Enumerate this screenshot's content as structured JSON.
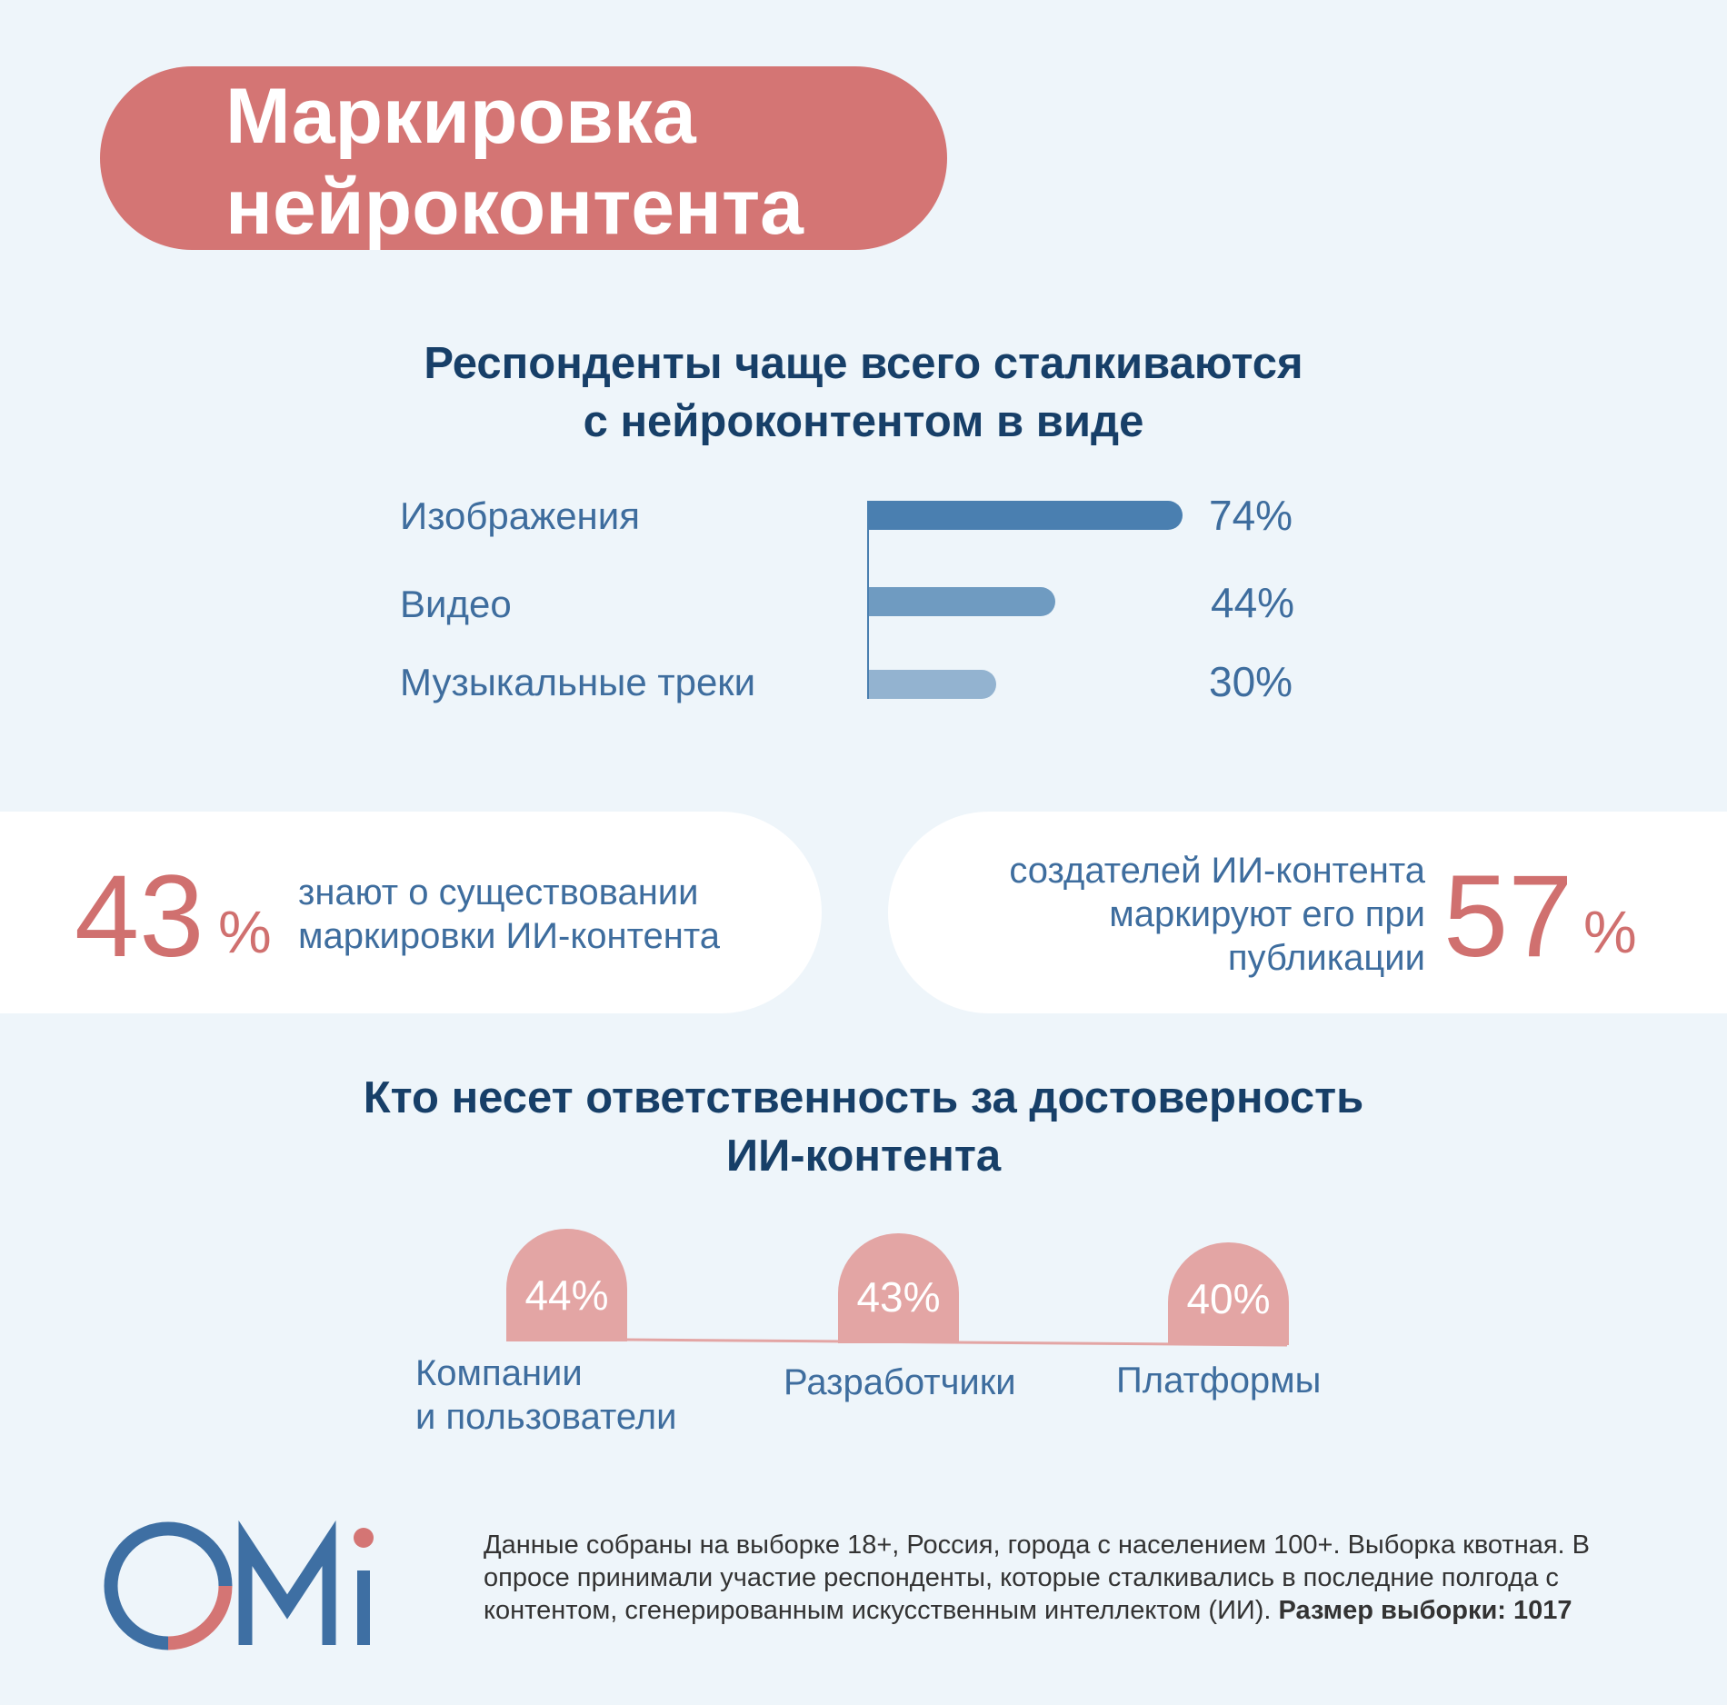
{
  "header": {
    "title": "Маркировка\nнейроконтента",
    "accent_color": "#d47574"
  },
  "section1": {
    "heading": "Респонденты чаще всего сталкиваются\nс нейроконтентом в виде"
  },
  "section2": {
    "heading": "Кто несет ответственность за достоверность\nИИ-контента"
  },
  "stats": {
    "left": {
      "number": "43",
      "percent_sign": "%",
      "text": "знают о существовании\nмаркировки ИИ-контента"
    },
    "right": {
      "number": "57",
      "percent_sign": "%",
      "text": "создателей ИИ-контента\nмаркируют его при\nпубликации"
    }
  },
  "footer": {
    "logo_name": "omi-logo",
    "text": "Данные собраны на выборке 18+, Россия, города с населением 100+. Выборка квотная. В опросе принимали участие респонденты, которые сталкивались в последние полгода с контентом, сгенерированным искусственным интеллектом (ИИ).",
    "text_bold": "Размер выборки: 1017"
  },
  "chart_data": [
    {
      "type": "bar",
      "orientation": "horizontal",
      "categories": [
        "Изображения",
        "Видео",
        "Музыкальные треки"
      ],
      "values": [
        74,
        44,
        30
      ],
      "value_labels": [
        "74%",
        "44%",
        "30%"
      ],
      "colors": [
        "#4a7fb0",
        "#6f9bc1",
        "#93b3d0"
      ],
      "xlim": [
        0,
        100
      ]
    },
    {
      "type": "bar",
      "orientation": "vertical",
      "categories": [
        "Компании\nи пользователи",
        "Разработчики",
        "Платформы"
      ],
      "values": [
        44,
        43,
        40
      ],
      "value_labels": [
        "44%",
        "43%",
        "40%"
      ],
      "color": "#e3a5a4"
    }
  ]
}
